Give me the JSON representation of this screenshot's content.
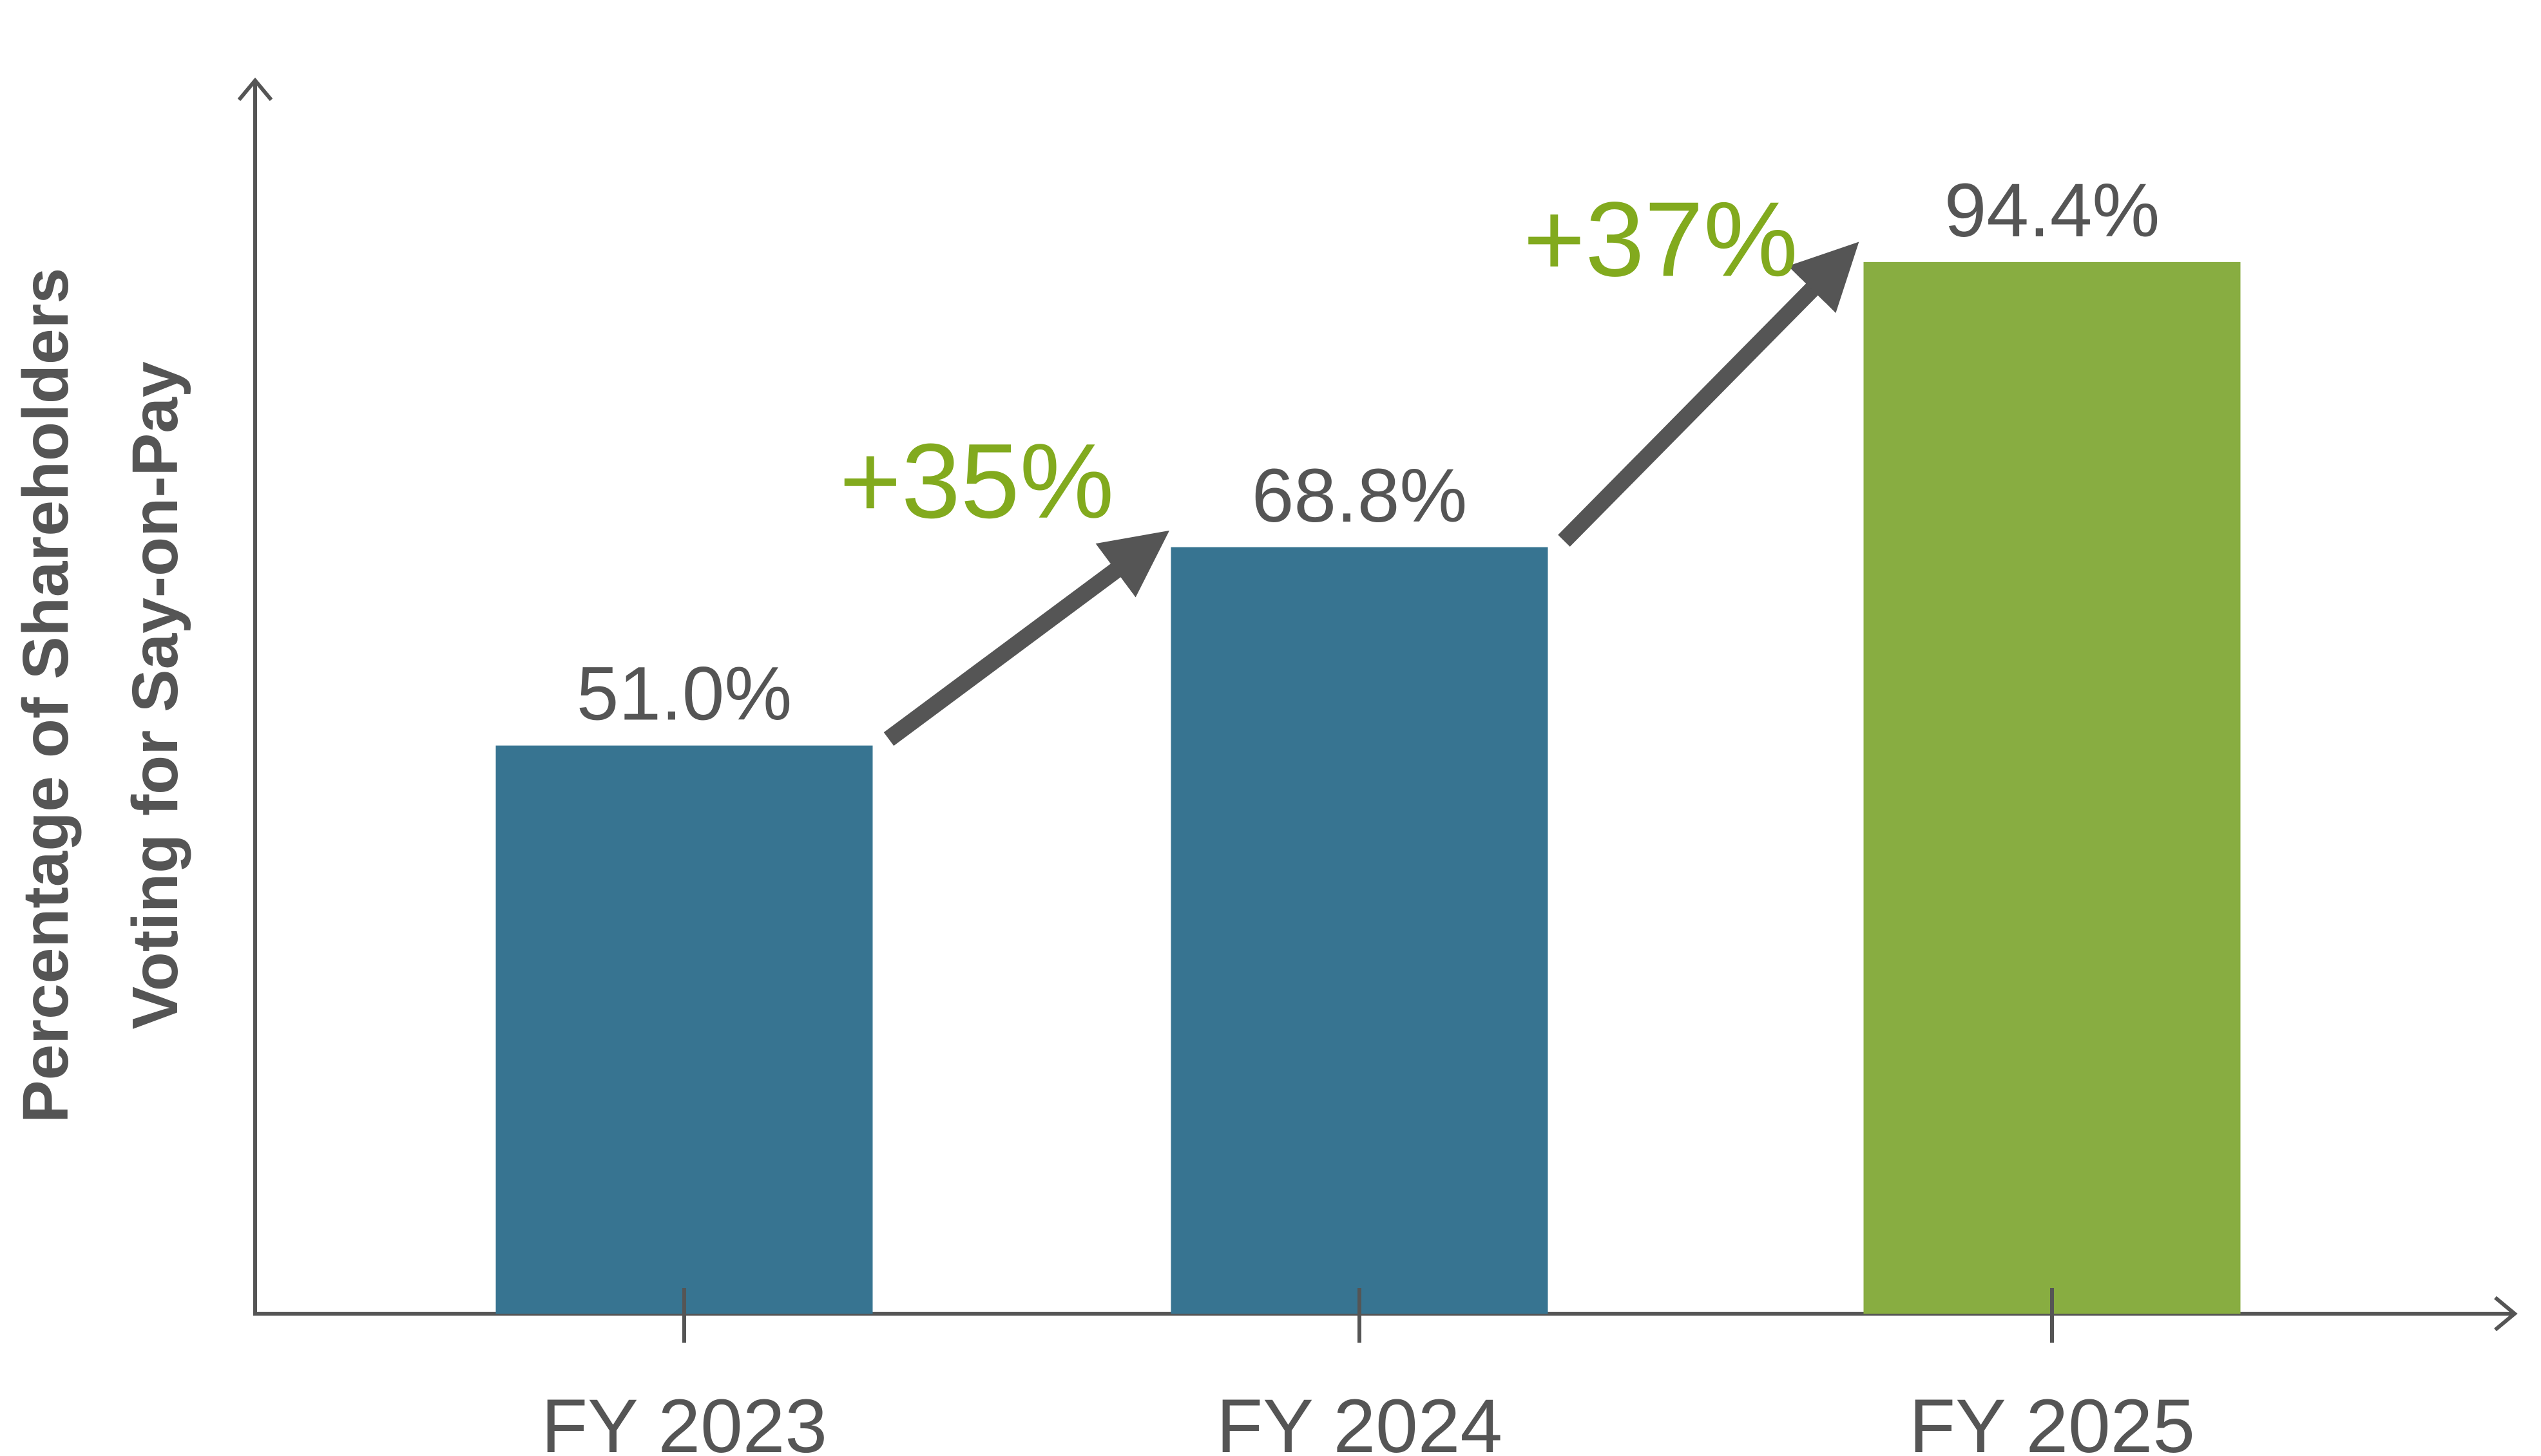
{
  "chart_data": {
    "type": "bar",
    "title": "",
    "xlabel": "",
    "ylabel_lines": [
      "Percentage of Shareholders",
      "Voting for Say-on-Pay"
    ],
    "categories": [
      "FY 2023",
      "FY 2024",
      "FY 2025"
    ],
    "values": [
      51.0,
      68.8,
      94.4
    ],
    "value_labels": [
      "51.0%",
      "68.8%",
      "94.4%"
    ],
    "bar_colors": [
      "#377491",
      "#377491",
      "#88AD41"
    ],
    "ylim": [
      0,
      100
    ],
    "grid": false,
    "annotations": [
      {
        "text": "+35%",
        "from_category": "FY 2023",
        "to_category": "FY 2024",
        "color": "#82AA1E"
      },
      {
        "text": "+37%",
        "from_category": "FY 2024",
        "to_category": "FY 2025",
        "color": "#82AA1E"
      }
    ],
    "axis_color": "#555555",
    "arrow_color": "#555555"
  }
}
